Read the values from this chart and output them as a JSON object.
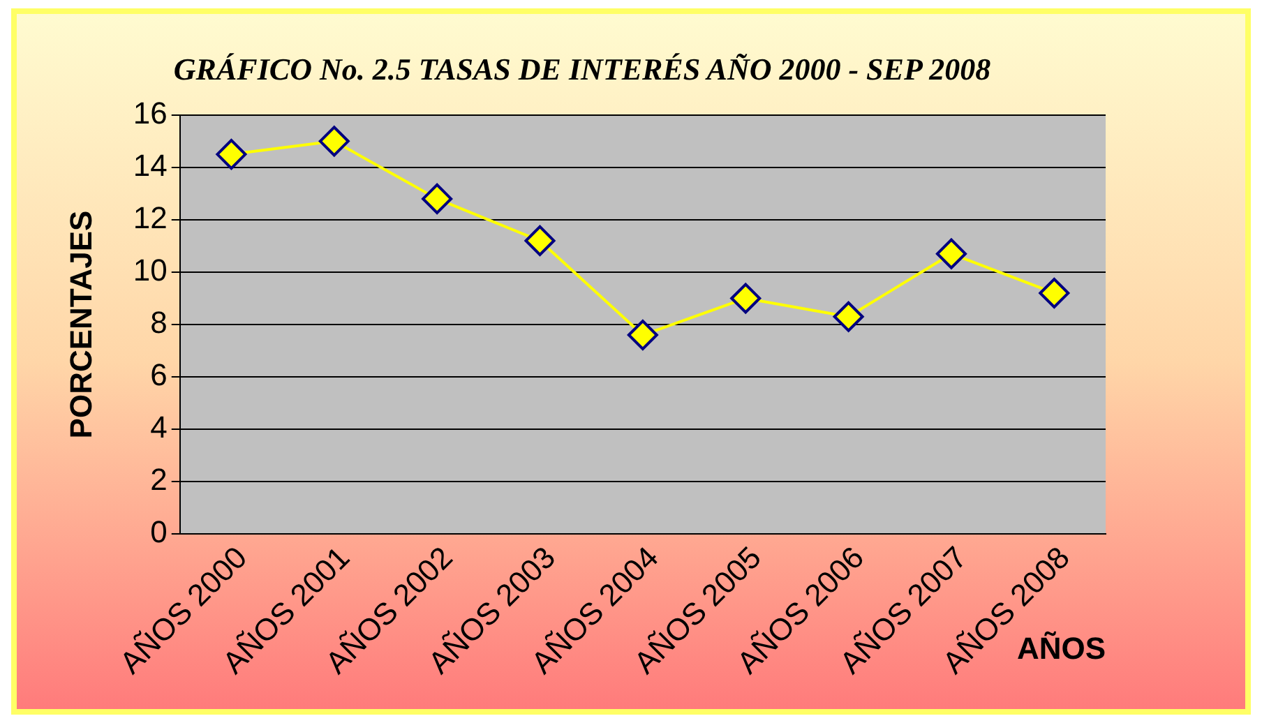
{
  "chart_data": {
    "type": "line",
    "title": "GRÁFICO No. 2.5 TASAS DE INTERÉS AÑO 2000 - SEP 2008",
    "xlabel": "AÑOS",
    "ylabel": "PORCENTAJES",
    "categories": [
      "AÑOS 2000",
      "AÑOS 2001",
      "AÑOS 2002",
      "AÑOS 2003",
      "AÑOS 2004",
      "AÑOS 2005",
      "AÑOS 2006",
      "AÑOS 2007",
      "AÑOS 2008"
    ],
    "series": [
      {
        "color": "#ffff00",
        "values": [
          14.5,
          15.0,
          12.8,
          11.2,
          7.6,
          9.0,
          8.3,
          10.7,
          9.2
        ]
      }
    ],
    "ylim": [
      0,
      16
    ],
    "yticks": [
      0,
      2,
      4,
      6,
      8,
      10,
      12,
      14,
      16
    ],
    "grid": "y",
    "marker": "diamond",
    "legend": false
  }
}
